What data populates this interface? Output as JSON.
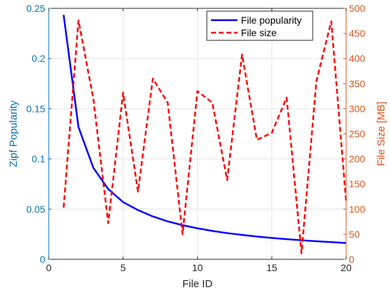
{
  "chart_data": {
    "type": "line",
    "title": "",
    "xlabel": "File ID",
    "ylabel_left": "Zipf Popularity",
    "ylabel_right": "File Size [MB]",
    "xlim": [
      0,
      20
    ],
    "ylim_left": [
      0,
      0.25
    ],
    "ylim_right": [
      0,
      500
    ],
    "xticks": [
      0,
      5,
      10,
      15,
      20
    ],
    "yticks_left": [
      0,
      0.05,
      0.1,
      0.15,
      0.2,
      0.25
    ],
    "yticks_right": [
      0,
      50,
      100,
      150,
      200,
      250,
      300,
      350,
      400,
      450,
      500
    ],
    "grid": true,
    "legend_position": "top-right",
    "colors": {
      "left_axis": "#0072BD",
      "right_axis": "#D95319",
      "popularity_line": "#0000FF",
      "size_line": "#FF0000",
      "grid": "#E6E6E6",
      "axes": "#262626"
    },
    "x": [
      1,
      2,
      3,
      4,
      5,
      6,
      7,
      8,
      9,
      10,
      11,
      12,
      13,
      14,
      15,
      16,
      17,
      18,
      19,
      20
    ],
    "series": [
      {
        "name": "File popularity",
        "axis": "left",
        "style": "solid",
        "values": [
          0.2435,
          0.1317,
          0.0911,
          0.07,
          0.057,
          0.0491,
          0.0427,
          0.0378,
          0.034,
          0.0309,
          0.0283,
          0.0261,
          0.0243,
          0.0227,
          0.0213,
          0.0201,
          0.019,
          0.018,
          0.0171,
          0.0163
        ]
      },
      {
        "name": "File size",
        "axis": "right",
        "style": "dashed",
        "values": [
          103,
          476,
          320,
          72,
          332,
          135,
          360,
          312,
          50,
          335,
          312,
          158,
          408,
          238,
          252,
          322,
          12,
          355,
          474,
          115
        ]
      }
    ]
  }
}
